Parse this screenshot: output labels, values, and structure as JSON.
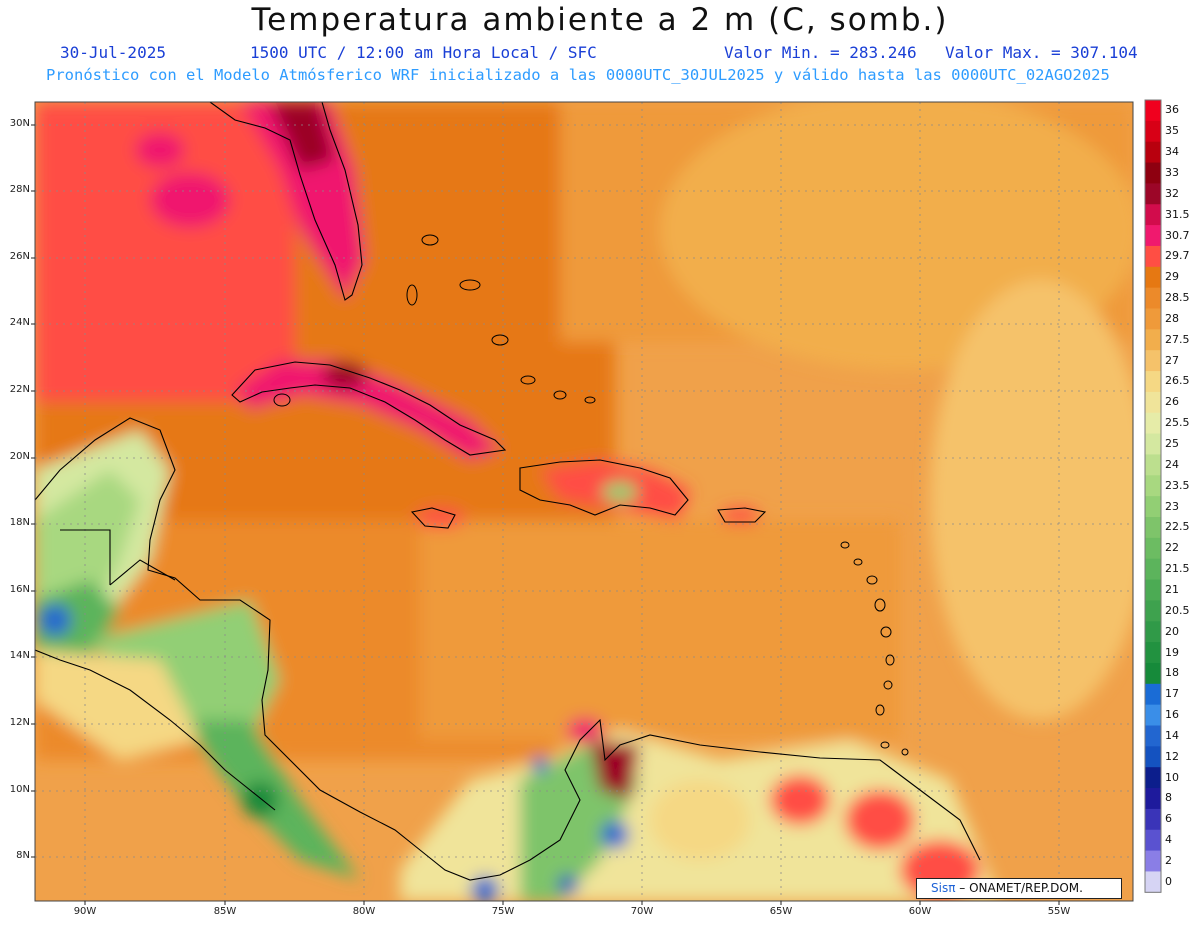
{
  "header": {
    "title": "Temperatura ambiente a 2 m (C, somb.)",
    "date": "30-Jul-2025",
    "time": "1500 UTC / 12:00 am Hora Local / SFC",
    "min_value": "Valor Min. = 283.246",
    "max_value": "Valor Max. = 307.104",
    "forecast_info": "Pronóstico con el Modelo Atmósferico WRF inicializado a las 0000UTC_30JUL2025 y válido hasta las  0000UTC_02AGO2025"
  },
  "map": {
    "lat_labels": [
      "30N",
      "28N",
      "26N",
      "24N",
      "22N",
      "20N",
      "18N",
      "16N",
      "14N",
      "12N",
      "10N",
      "8N"
    ],
    "lon_labels": [
      "90W",
      "85W",
      "80W",
      "75W",
      "70W",
      "65W",
      "60W",
      "55W"
    ],
    "lat_range": [
      7,
      30.5
    ],
    "lon_range": [
      -92,
      -52
    ]
  },
  "colorbar": {
    "labels": [
      "36",
      "35",
      "34",
      "33",
      "32",
      "31.5",
      "30.7",
      "29.7",
      "29",
      "28.5",
      "28",
      "27.5",
      "27",
      "26.5",
      "26",
      "25.5",
      "25",
      "24",
      "23.5",
      "23",
      "22.5",
      "22",
      "21.5",
      "21",
      "20.5",
      "20",
      "19",
      "18",
      "17",
      "16",
      "14",
      "12",
      "10",
      "8",
      "6",
      "4",
      "2",
      "0"
    ],
    "colors": [
      "#f0001e",
      "#d80016",
      "#b8000e",
      "#8e0010",
      "#9c0628",
      "#d20c4c",
      "#f0196e",
      "#ff4e44",
      "#e67812",
      "#ec8a2a",
      "#ef9a3a",
      "#f2ae4c",
      "#f5c26a",
      "#f5d884",
      "#f0e49a",
      "#e6eca8",
      "#d4e8a0",
      "#bcdf8e",
      "#a8d880",
      "#92cf74",
      "#7ec46a",
      "#6cbc62",
      "#5cb45c",
      "#4cab54",
      "#3ea24e",
      "#309a48",
      "#229240",
      "#168a3a",
      "#1a6cd6",
      "#3a8ee8",
      "#2266d0",
      "#1452c0",
      "#0c1e8c",
      "#1e1a9c",
      "#3a34b8",
      "#5a52d0",
      "#8a7ee6",
      "#d6d4f4"
    ]
  },
  "credit": {
    "brand": "Sisπ",
    "organization": " – ONAMET/REP.DOM."
  }
}
